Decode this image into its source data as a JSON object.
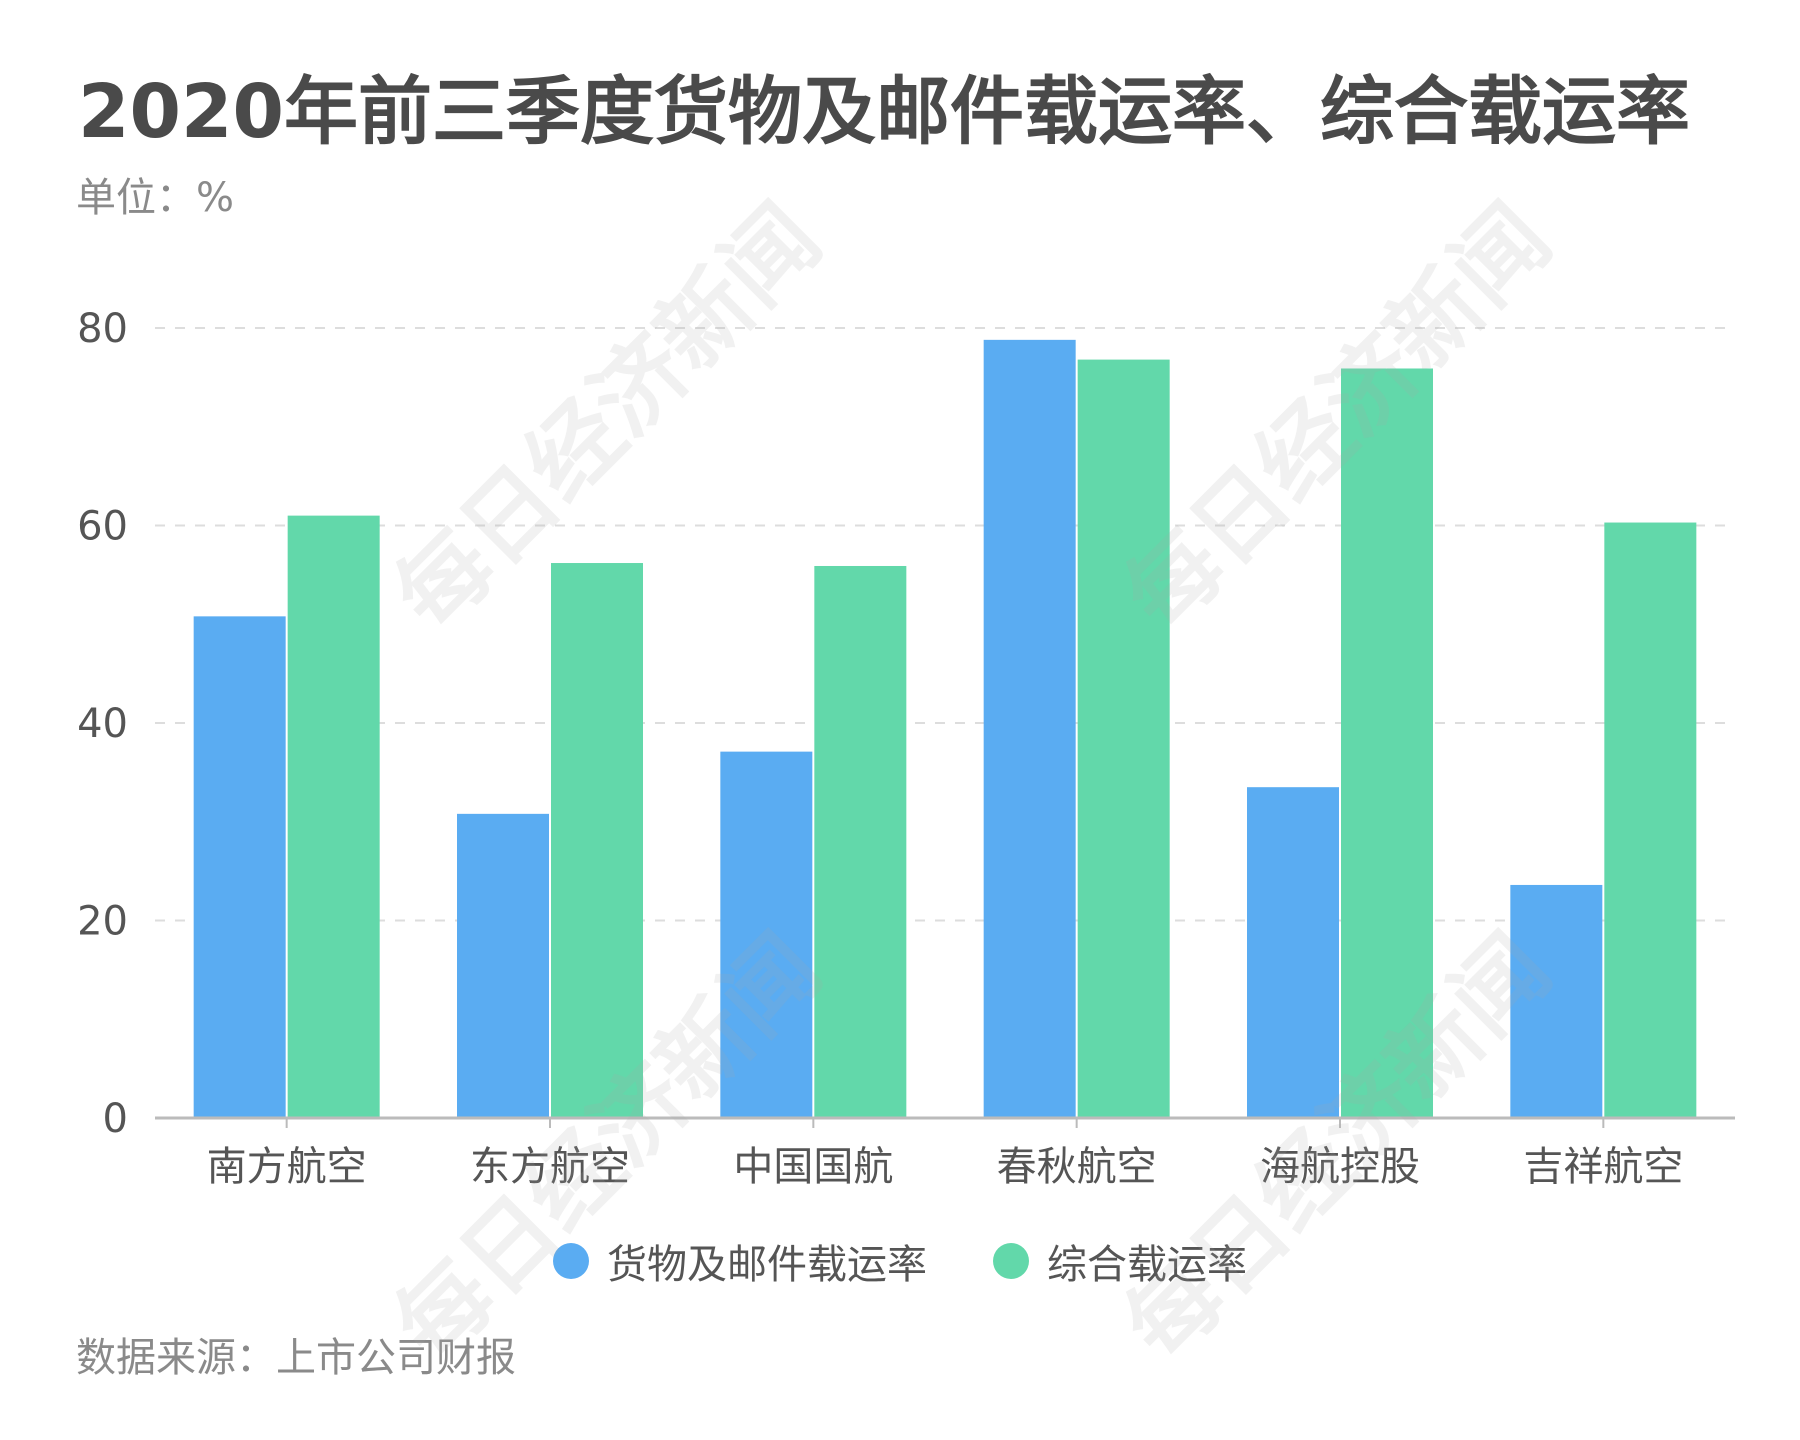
{
  "header": {
    "title": "2020年前三季度货物及邮件载运率、综合载运率",
    "unit": "单位：%"
  },
  "footer": {
    "source": "数据来源：上市公司财报"
  },
  "watermark": {
    "text": "每日经济新闻"
  },
  "colors": {
    "cargo": "#5aacf2",
    "overall": "#62d8aa",
    "grid": "#dddddd",
    "axis": "#bbbbbb",
    "tick_text": "#555555"
  },
  "chart_data": {
    "type": "bar",
    "title": "2020年前三季度货物及邮件载运率、综合载运率",
    "ylabel": "单位：%",
    "ylim": [
      0,
      80
    ],
    "yticks": [
      0,
      20,
      40,
      60,
      80
    ],
    "grid": true,
    "legend_position": "bottom",
    "categories": [
      "南方航空",
      "东方航空",
      "中国国航",
      "春秋航空",
      "海航控股",
      "吉祥航空"
    ],
    "series": [
      {
        "name": "货物及邮件载运率",
        "color": "#5aacf2",
        "values": [
          50.8,
          30.8,
          37.1,
          78.8,
          33.5,
          23.6
        ]
      },
      {
        "name": "综合载运率",
        "color": "#62d8aa",
        "values": [
          61.0,
          56.2,
          55.9,
          76.8,
          75.9,
          60.3
        ]
      }
    ]
  }
}
